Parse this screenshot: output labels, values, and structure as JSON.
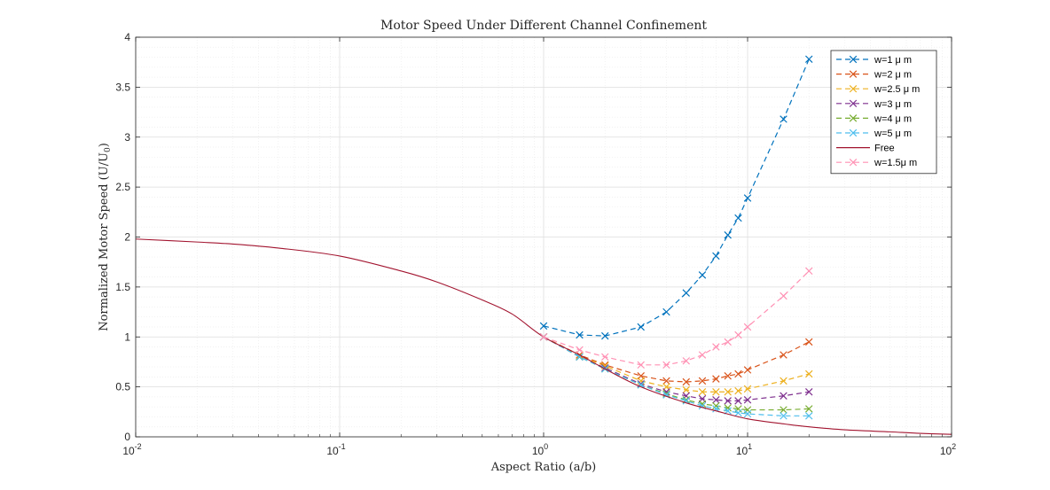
{
  "chart_data": {
    "type": "line",
    "title": "Motor Speed Under Different Channel Confinement",
    "xlabel": "Aspect Ratio (a/b)",
    "ylabel": "Normalized Motor Speed (U/U",
    "ylabel_sub": "0",
    "ylabel_close": ")",
    "xscale": "log",
    "xlim": [
      0.01,
      100
    ],
    "ylim": [
      0,
      4
    ],
    "grid": true,
    "legend_position": "top-right",
    "x_ticks": [
      {
        "base": "10",
        "exp": "-2",
        "value": 0.01
      },
      {
        "base": "10",
        "exp": "-1",
        "value": 0.1
      },
      {
        "base": "10",
        "exp": "0",
        "value": 1
      },
      {
        "base": "10",
        "exp": "1",
        "value": 10
      },
      {
        "base": "10",
        "exp": "2",
        "value": 100
      }
    ],
    "y_ticks": [
      "0",
      "0.5",
      "1",
      "1.5",
      "2",
      "2.5",
      "3",
      "3.5",
      "4"
    ],
    "x": [
      1,
      1.5,
      2,
      3,
      4,
      5,
      6,
      7,
      8,
      9,
      10,
      15,
      20
    ],
    "series": [
      {
        "name": "w=1 μ m",
        "color": "#0072bd",
        "style": "dashed",
        "marker": "x",
        "values": [
          1.11,
          1.02,
          1.01,
          1.1,
          1.25,
          1.44,
          1.62,
          1.81,
          2.02,
          2.19,
          2.39,
          3.18,
          3.78
        ]
      },
      {
        "name": "w=2 μ m",
        "color": "#d95319",
        "style": "dashed",
        "marker": "x",
        "values": [
          1.0,
          0.82,
          0.72,
          0.61,
          0.56,
          0.55,
          0.56,
          0.58,
          0.61,
          0.63,
          0.67,
          0.82,
          0.95
        ]
      },
      {
        "name": "w=2.5 μ m",
        "color": "#edb120",
        "style": "dashed",
        "marker": "x",
        "values": [
          1.0,
          0.81,
          0.71,
          0.56,
          0.5,
          0.47,
          0.45,
          0.45,
          0.45,
          0.46,
          0.48,
          0.56,
          0.63
        ]
      },
      {
        "name": "w=3 μ m",
        "color": "#7e2f8e",
        "style": "dashed",
        "marker": "x",
        "values": [
          1.0,
          0.8,
          0.69,
          0.53,
          0.45,
          0.41,
          0.38,
          0.37,
          0.36,
          0.36,
          0.37,
          0.41,
          0.45
        ]
      },
      {
        "name": "w=4 μ m",
        "color": "#77ac30",
        "style": "dashed",
        "marker": "x",
        "values": [
          1.0,
          0.8,
          0.68,
          0.52,
          0.43,
          0.37,
          0.33,
          0.31,
          0.29,
          0.28,
          0.27,
          0.27,
          0.28
        ]
      },
      {
        "name": "w=5 μ m",
        "color": "#4dbeee",
        "style": "dashed",
        "marker": "x",
        "values": [
          1.0,
          0.8,
          0.68,
          0.52,
          0.42,
          0.36,
          0.31,
          0.28,
          0.26,
          0.24,
          0.23,
          0.21,
          0.21
        ]
      },
      {
        "name": "Free",
        "color": "#a2142f",
        "style": "solid",
        "marker": "none",
        "x": [
          0.01,
          0.02,
          0.03,
          0.05,
          0.1,
          0.2,
          0.3,
          0.5,
          0.7,
          1,
          1.5,
          2,
          3,
          5,
          7,
          10,
          15,
          20,
          30,
          50,
          70,
          100
        ],
        "values": [
          1.98,
          1.95,
          1.93,
          1.89,
          1.81,
          1.66,
          1.55,
          1.37,
          1.23,
          1.0,
          0.82,
          0.68,
          0.5,
          0.34,
          0.26,
          0.18,
          0.13,
          0.1,
          0.07,
          0.05,
          0.035,
          0.025
        ]
      },
      {
        "name": "w=1.5μ m",
        "color": "#ff91b4",
        "style": "dashed",
        "marker": "x",
        "values": [
          1.0,
          0.87,
          0.8,
          0.72,
          0.72,
          0.76,
          0.82,
          0.9,
          0.95,
          1.02,
          1.1,
          1.41,
          1.66
        ]
      }
    ]
  }
}
